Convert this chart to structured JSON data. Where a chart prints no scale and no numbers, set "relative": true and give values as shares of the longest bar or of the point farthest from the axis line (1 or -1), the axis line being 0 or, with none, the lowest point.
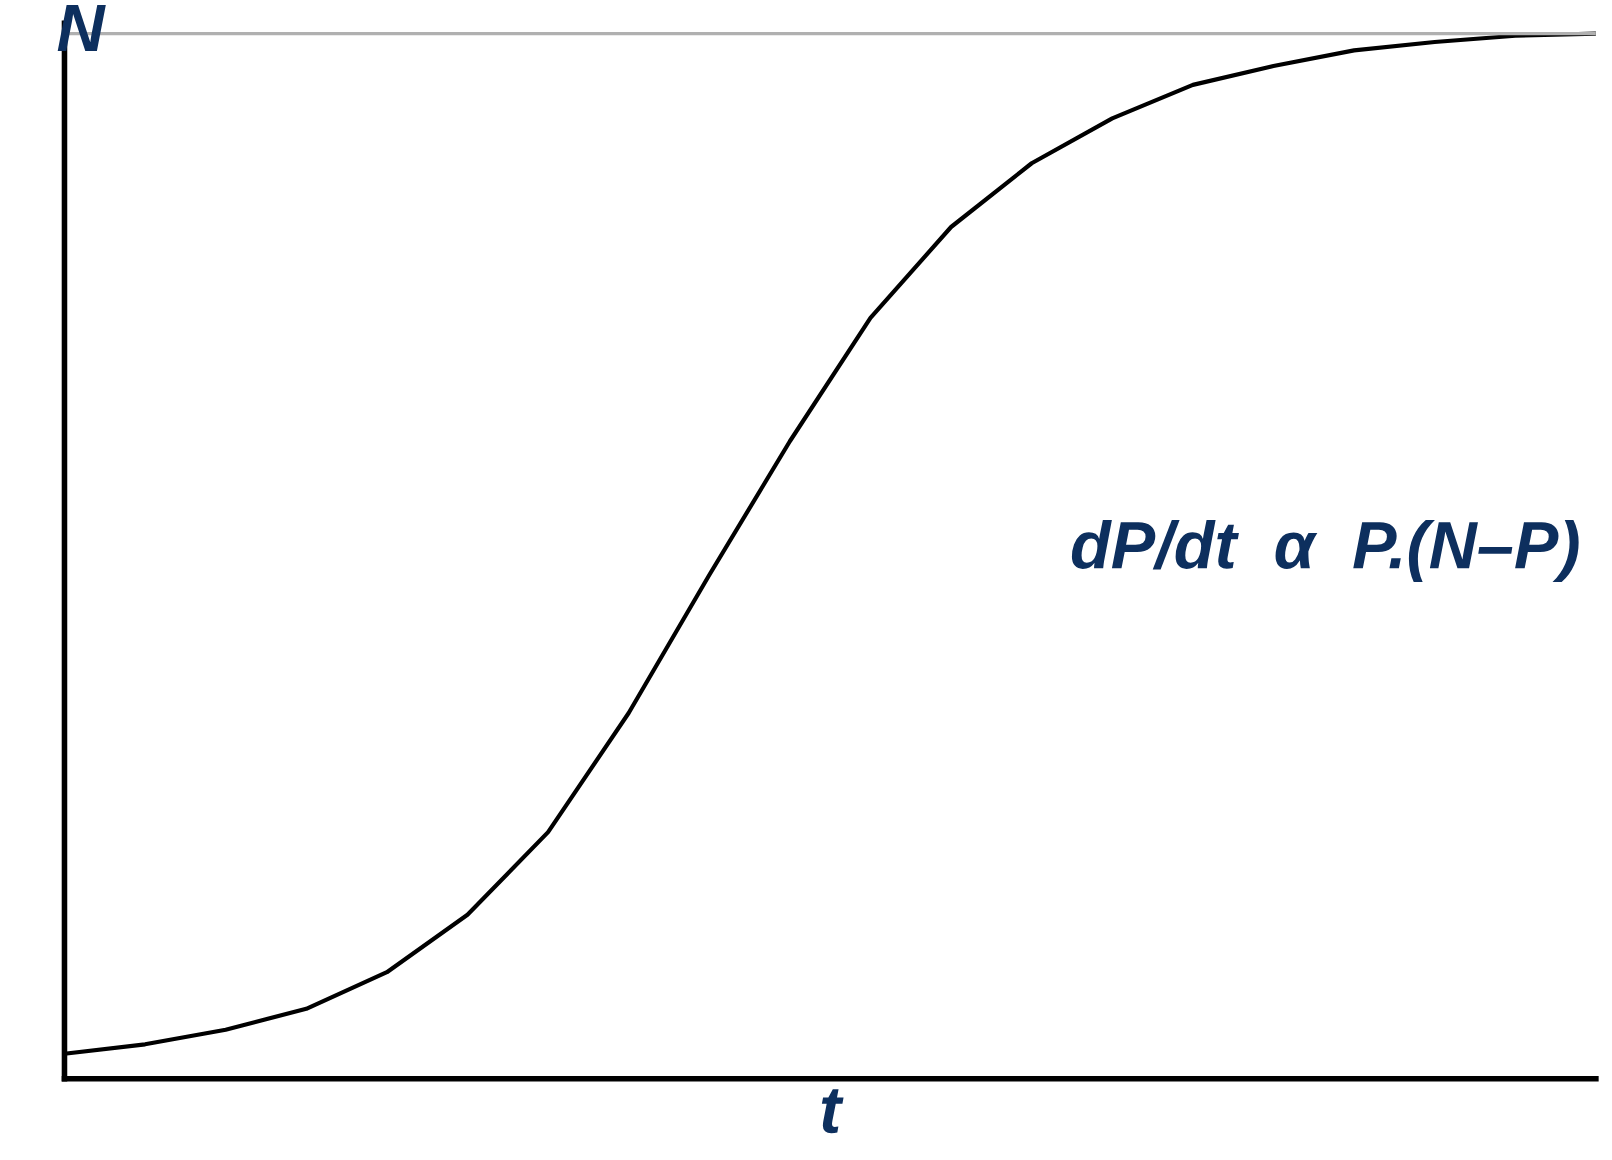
{
  "chart_data": {
    "type": "line",
    "relative": true,
    "xlabel": "t",
    "categories": [
      null,
      null,
      null,
      null,
      null,
      null,
      null,
      null,
      null,
      null,
      null,
      null,
      null,
      null,
      null,
      null,
      null,
      null,
      null,
      null
    ],
    "series": [
      {
        "color": "#000000",
        "values": [
          0.024,
          0.033,
          0.047,
          0.067,
          0.102,
          0.157,
          0.236,
          0.35,
          0.482,
          0.61,
          0.728,
          0.815,
          0.876,
          0.919,
          0.951,
          0.969,
          0.984,
          0.992,
          0.998,
          1.0
        ]
      }
    ],
    "ref_lines": [
      {
        "axis": "y",
        "value": 1.0,
        "label": "N",
        "color": "#b0b0b0"
      }
    ],
    "annotations": [
      "dP/dt  α  P.(N–P)"
    ],
    "legend": false,
    "marker": "none",
    "line_style": "solid"
  }
}
